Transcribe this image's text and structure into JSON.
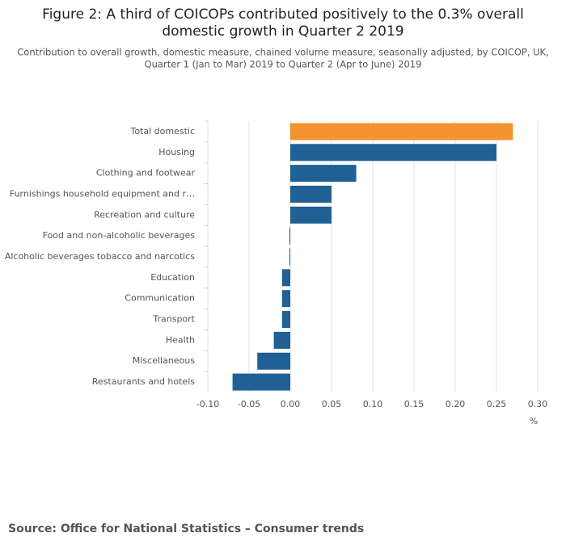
{
  "chart_data": {
    "type": "hbar",
    "title": "Figure 2: A third of COICOPs contributed positively to the 0.3% overall",
    "title_line2": "domestic growth in Quarter 2 2019",
    "subtitle": "Contribution to overall growth, domestic measure, chained volume measure, seasonally adjusted, by COICOP, UK,",
    "subtitle_line2": "Quarter 1 (Jan to Mar) 2019 to Quarter 2 (Apr to June) 2019",
    "categories": [
      "Total domestic",
      "Housing",
      "Clothing and footwear",
      "Furnishings household equipment and r…",
      "Recreation and culture",
      "Food and non-alcoholic beverages",
      "Alcoholic beverages tobacco and narcotics",
      "Education",
      "Communication",
      "Transport",
      "Health",
      "Miscellaneous",
      "Restaurants and hotels"
    ],
    "values": [
      0.27,
      0.25,
      0.08,
      0.05,
      0.05,
      -0.001,
      -0.001,
      -0.01,
      -0.01,
      -0.01,
      -0.02,
      -0.04,
      -0.07
    ],
    "colors": [
      "#f39431",
      "#206095",
      "#206095",
      "#206095",
      "#206095",
      "#206095",
      "#206095",
      "#206095",
      "#206095",
      "#206095",
      "#206095",
      "#206095",
      "#206095"
    ],
    "xlim": [
      -0.1,
      0.3
    ],
    "xticks": [
      {
        "value": -0.1,
        "label": "-0.10"
      },
      {
        "value": -0.05,
        "label": "-0.05"
      },
      {
        "value": 0,
        "label": "0.00"
      },
      {
        "value": 0.05,
        "label": "0.05"
      },
      {
        "value": 0.1,
        "label": "0.10"
      },
      {
        "value": 0.15,
        "label": "0.15"
      },
      {
        "value": 0.2,
        "label": "0.20"
      },
      {
        "value": 0.25,
        "label": "0.25"
      },
      {
        "value": 0.3,
        "label": "0.30"
      }
    ],
    "x_label": "%",
    "grid": true,
    "source": "Source: Office for National Statistics – Consumer trends"
  }
}
